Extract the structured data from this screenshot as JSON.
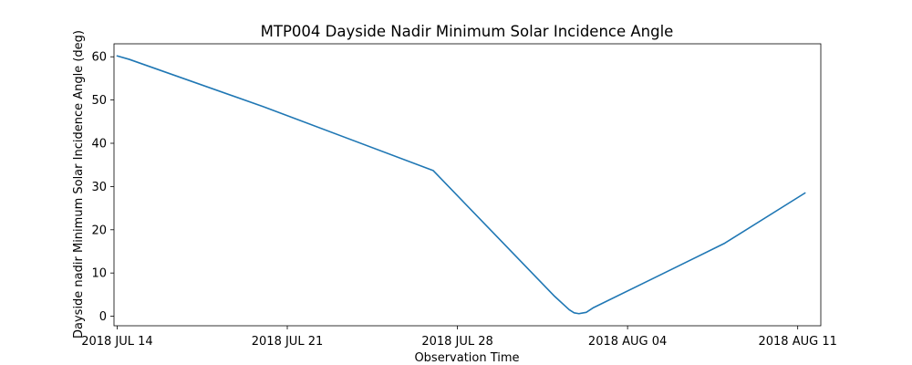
{
  "chart_data": {
    "type": "line",
    "title": "MTP004 Dayside Nadir Minimum Solar Incidence Angle",
    "xlabel": "Observation Time",
    "ylabel": "Dayside nadir Minimum Solar Incidence Angle (deg)",
    "x_type": "date",
    "xlim": [
      "2018-07-13T20:54",
      "2018-08-11T22:48"
    ],
    "ylim": [
      -2.2,
      63.0
    ],
    "x_ticks": [
      {
        "value": "2018-07-14",
        "label": "2018 JUL 14"
      },
      {
        "value": "2018-07-21",
        "label": "2018 JUL 21"
      },
      {
        "value": "2018-07-28",
        "label": "2018 JUL 28"
      },
      {
        "value": "2018-08-04",
        "label": "2018 AUG 04"
      },
      {
        "value": "2018-08-11",
        "label": "2018 AUG 11"
      }
    ],
    "y_ticks": [
      0,
      10,
      20,
      30,
      40,
      50,
      60
    ],
    "grid": false,
    "color": "#1f77b4",
    "series": [
      {
        "x": [
          "2018-07-14T00:00",
          "2018-07-14T12:00",
          "2018-07-20T00:00",
          "2018-07-27T00:00",
          "2018-08-01T00:00",
          "2018-08-01T14:24",
          "2018-08-01T19:12",
          "2018-08-02T00:00",
          "2018-08-02T07:12",
          "2018-08-02T14:24",
          "2018-08-05T00:00",
          "2018-08-08T00:00",
          "2018-08-11T07:12"
        ],
        "y": [
          60.2,
          59.4,
          48.5,
          33.7,
          4.6,
          1.5,
          0.8,
          0.6,
          0.9,
          2.0,
          8.6,
          16.9,
          28.5
        ]
      }
    ]
  }
}
